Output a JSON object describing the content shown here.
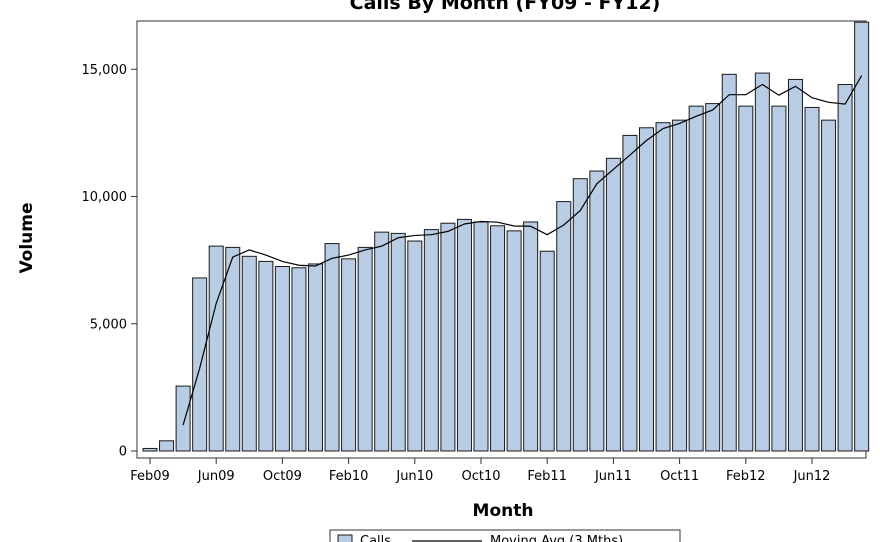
{
  "chart_data": {
    "type": "bar",
    "title": "Calls By Month (FY09 - FY12)",
    "xlabel": "Month",
    "ylabel": "Volume",
    "ylim": [
      0,
      17500
    ],
    "y_ticks": [
      0,
      5000,
      10000,
      15000
    ],
    "y_tick_labels": [
      "0",
      "5,000",
      "10,000",
      "15,000"
    ],
    "x_tick_labels": [
      "Feb09",
      "Jun09",
      "Oct09",
      "Feb10",
      "Jun10",
      "Oct10",
      "Feb11",
      "Jun11",
      "Oct11",
      "Feb12",
      "Jun12"
    ],
    "grid": false,
    "legend_position": "bottom",
    "categories": [
      "Feb09",
      "Mar09",
      "Apr09",
      "May09",
      "Jun09",
      "Jul09",
      "Aug09",
      "Sep09",
      "Oct09",
      "Nov09",
      "Dec09",
      "Jan10",
      "Feb10",
      "Mar10",
      "Apr10",
      "May10",
      "Jun10",
      "Jul10",
      "Aug10",
      "Sep10",
      "Oct10",
      "Nov10",
      "Dec10",
      "Jan11",
      "Feb11",
      "Mar11",
      "Apr11",
      "May11",
      "Jun11",
      "Jul11",
      "Aug11",
      "Sep11",
      "Oct11",
      "Nov11",
      "Dec11",
      "Jan12",
      "Feb12",
      "Mar12",
      "Apr12",
      "May12",
      "Jun12",
      "Jul12",
      "Aug12",
      "Sep12"
    ],
    "series": [
      {
        "name": "Calls",
        "type": "bar",
        "color": "#b8cce4",
        "values": [
          100,
          400,
          2550,
          6800,
          8050,
          8000,
          7650,
          7450,
          7250,
          7200,
          7350,
          8150,
          7550,
          8000,
          8600,
          8550,
          8250,
          8700,
          8950,
          9100,
          9000,
          8850,
          8650,
          9000,
          7850,
          9800,
          10700,
          11000,
          11500,
          12400,
          12700,
          12900,
          13000,
          13550,
          13650,
          14800,
          13550,
          14850,
          13550,
          14600,
          13500,
          13000,
          14400,
          16850
        ]
      },
      {
        "name": "Moving Avg (3 Mths)",
        "type": "line",
        "color": "#000000",
        "values": [
          null,
          null,
          1020,
          3250,
          5800,
          7620,
          7900,
          7700,
          7450,
          7300,
          7270,
          7570,
          7700,
          7900,
          8050,
          8380,
          8470,
          8500,
          8630,
          8920,
          9020,
          8990,
          8840,
          8830,
          8500,
          8880,
          9450,
          10500,
          11070,
          11630,
          12200,
          12670,
          12870,
          13150,
          13400,
          14000,
          14000,
          14400,
          13980,
          14330,
          13880,
          13700,
          13630,
          14750
        ]
      }
    ]
  }
}
